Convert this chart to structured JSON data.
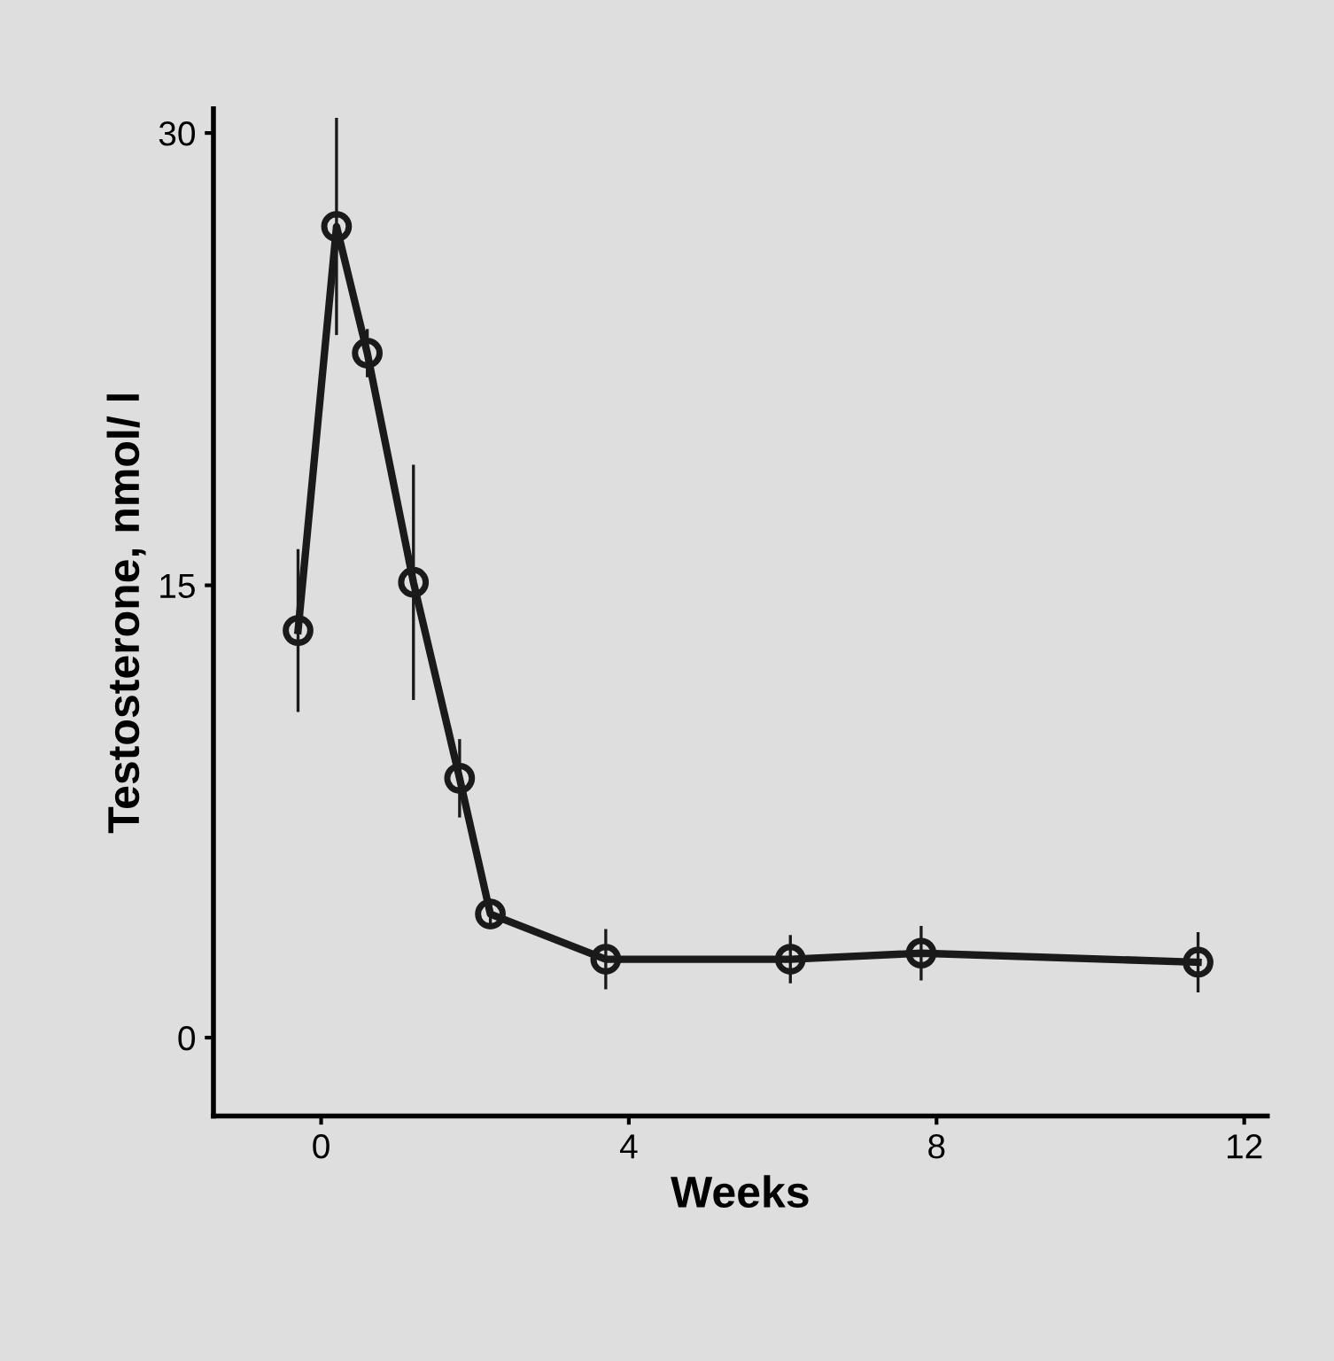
{
  "chart_data": {
    "type": "line",
    "xlabel": "Weeks",
    "ylabel": "Testosterone, nmol/ l",
    "x": [
      -0.3,
      0.2,
      0.6,
      1.2,
      1.8,
      2.2,
      3.7,
      6.1,
      7.8,
      11.4
    ],
    "series": [
      {
        "color": "#1a1a1a",
        "values": [
          13.5,
          26.9,
          22.7,
          15.1,
          8.6,
          4.1,
          2.6,
          2.6,
          2.8,
          2.5
        ],
        "errors": [
          2.7,
          3.6,
          0.8,
          3.9,
          1.3,
          0.5,
          1.0,
          0.8,
          0.9,
          1.0
        ]
      }
    ],
    "marker": "circle",
    "line_style": "solid",
    "xlim": [
      -1.4,
      12.3
    ],
    "ylim": [
      -2.6,
      30.8
    ],
    "xticks": [
      0,
      4,
      8,
      12
    ],
    "yticks": [
      0,
      15,
      30
    ],
    "grid": false,
    "legend": false
  }
}
